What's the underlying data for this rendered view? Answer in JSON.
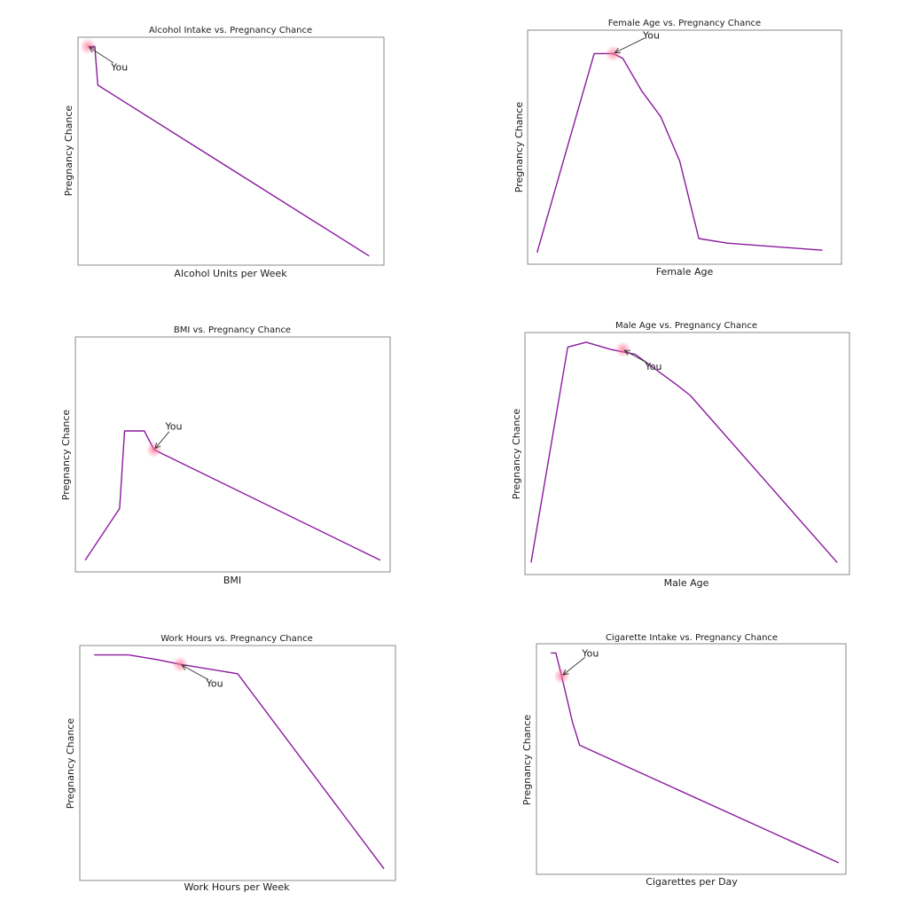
{
  "colors": {
    "line": "#8B1A9E",
    "highlight": "#FF6F91",
    "arrow": "#333333"
  },
  "chart_data": [
    {
      "id": "alcohol",
      "type": "line",
      "title": "Alcohol Intake vs. Pregnancy Chance",
      "xlabel": "Alcohol Units per Week",
      "ylabel": "Pregnancy Chance",
      "ticks_visible": false,
      "grid": false,
      "xlim": [
        -1,
        30
      ],
      "ylim": [
        0,
        1
      ],
      "x": [
        0,
        0.7,
        1,
        28.5
      ],
      "y": [
        0.96,
        0.96,
        0.79,
        0.04
      ],
      "annotation": {
        "text": "You",
        "x": 0,
        "y": 0.96,
        "text_x": 3.2,
        "text_y": 0.87
      }
    },
    {
      "id": "female_age",
      "type": "line",
      "title": "Female Age vs. Pregnancy Chance",
      "xlabel": "Female Age",
      "ylabel": "Pregnancy Chance",
      "ticks_visible": false,
      "grid": false,
      "xlim": [
        17,
        50
      ],
      "ylim": [
        0,
        1
      ],
      "x": [
        18,
        24,
        26,
        27,
        29,
        31,
        33,
        35,
        38,
        48
      ],
      "y": [
        0.05,
        0.9,
        0.9,
        0.88,
        0.74,
        0.63,
        0.44,
        0.11,
        0.09,
        0.06
      ],
      "annotation": {
        "text": "You",
        "x": 26,
        "y": 0.9,
        "text_x": 30,
        "text_y": 0.98
      }
    },
    {
      "id": "bmi",
      "type": "line",
      "title": "BMI vs. Pregnancy Chance",
      "xlabel": "BMI",
      "ylabel": "Pregnancy Chance",
      "ticks_visible": false,
      "grid": false,
      "xlim": [
        14,
        46
      ],
      "ylim": [
        0,
        1
      ],
      "x": [
        15,
        18.5,
        19,
        21,
        22,
        45
      ],
      "y": [
        0.05,
        0.27,
        0.6,
        0.6,
        0.52,
        0.05
      ],
      "annotation": {
        "text": "You",
        "x": 22,
        "y": 0.52,
        "text_x": 24,
        "text_y": 0.62
      }
    },
    {
      "id": "male_age",
      "type": "line",
      "title": "Male Age vs. Pregnancy Chance",
      "xlabel": "Male Age",
      "ylabel": "Pregnancy Chance",
      "ticks_visible": false,
      "grid": false,
      "xlim": [
        17,
        70
      ],
      "ylim": [
        0,
        1
      ],
      "x": [
        18,
        24,
        27,
        31,
        35,
        42,
        44,
        68
      ],
      "y": [
        0.05,
        0.94,
        0.96,
        0.93,
        0.91,
        0.78,
        0.74,
        0.05
      ],
      "annotation": {
        "text": "You",
        "x": 33,
        "y": 0.93,
        "text_x": 38,
        "text_y": 0.86
      }
    },
    {
      "id": "work_hours",
      "type": "line",
      "title": "Work Hours vs. Pregnancy Chance",
      "xlabel": "Work Hours per Week",
      "ylabel": "Pregnancy Chance",
      "ticks_visible": false,
      "grid": false,
      "xlim": [
        -5,
        105
      ],
      "ylim": [
        0,
        1
      ],
      "x": [
        0,
        12,
        22,
        30,
        50,
        101
      ],
      "y": [
        0.96,
        0.96,
        0.94,
        0.92,
        0.88,
        0.05
      ],
      "annotation": {
        "text": "You",
        "x": 30,
        "y": 0.92,
        "text_x": 42,
        "text_y": 0.84
      }
    },
    {
      "id": "cigarettes",
      "type": "line",
      "title": "Cigarette Intake vs. Pregnancy Chance",
      "xlabel": "Cigarettes per Day",
      "ylabel": "Pregnancy Chance",
      "ticks_visible": false,
      "grid": false,
      "xlim": [
        -2,
        41
      ],
      "ylim": [
        0,
        1
      ],
      "x": [
        0,
        0.7,
        1.5,
        3,
        4,
        40
      ],
      "y": [
        0.96,
        0.96,
        0.86,
        0.66,
        0.56,
        0.05
      ],
      "annotation": {
        "text": "You",
        "x": 1.5,
        "y": 0.86,
        "text_x": 5.5,
        "text_y": 0.96
      }
    }
  ]
}
